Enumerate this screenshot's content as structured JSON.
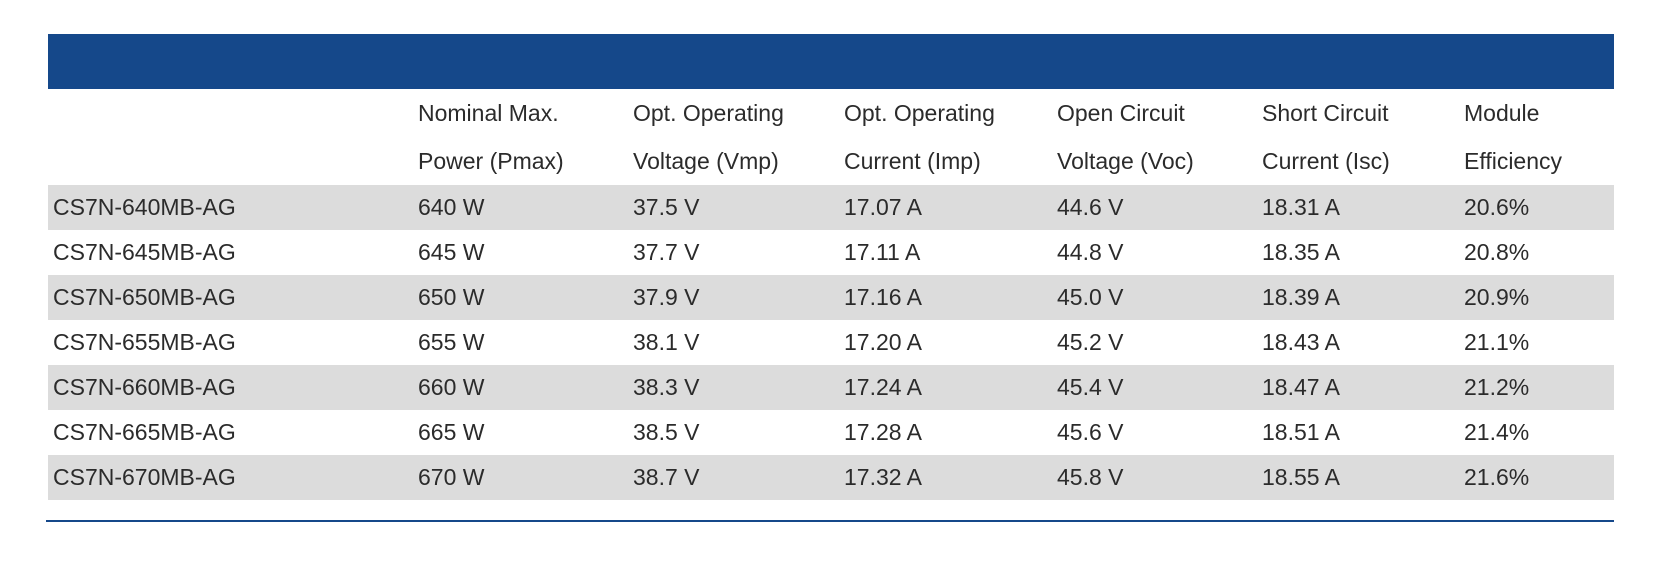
{
  "table": {
    "header_bar": "",
    "columns": [
      {
        "line1": "",
        "line2": ""
      },
      {
        "line1": "Nominal Max.",
        "line2": "Power (Pmax)"
      },
      {
        "line1": "Opt. Operating",
        "line2": "Voltage (Vmp)"
      },
      {
        "line1": "Opt. Operating",
        "line2": "Current (Imp)"
      },
      {
        "line1": "Open Circuit",
        "line2": "Voltage (Voc)"
      },
      {
        "line1": "Short Circuit",
        "line2": "Current (Isc)"
      },
      {
        "line1": "Module",
        "line2": "Efficiency"
      }
    ],
    "rows": [
      [
        "CS7N-640MB-AG",
        "640 W",
        "37.5 V",
        "17.07 A",
        "44.6 V",
        "18.31 A",
        "20.6%"
      ],
      [
        "CS7N-645MB-AG",
        "645 W",
        "37.7 V",
        "17.11 A",
        "44.8 V",
        "18.35 A",
        "20.8%"
      ],
      [
        "CS7N-650MB-AG",
        "650 W",
        "37.9 V",
        "17.16 A",
        "45.0 V",
        "18.39 A",
        "20.9%"
      ],
      [
        "CS7N-655MB-AG",
        "655 W",
        "38.1 V",
        "17.20 A",
        "45.2 V",
        "18.43 A",
        "21.1%"
      ],
      [
        "CS7N-660MB-AG",
        "660 W",
        "38.3 V",
        "17.24 A",
        "45.4 V",
        "18.47 A",
        "21.2%"
      ],
      [
        "CS7N-665MB-AG",
        "665 W",
        "38.5 V",
        "17.28 A",
        "45.6 V",
        "18.51 A",
        "21.4%"
      ],
      [
        "CS7N-670MB-AG",
        "670 W",
        "38.7 V",
        "17.32 A",
        "45.8 V",
        "18.55 A",
        "21.6%"
      ]
    ]
  },
  "colors": {
    "header_bar": "#15488a",
    "row_shade": "#dcdcdc",
    "text": "#2b2b2b"
  }
}
